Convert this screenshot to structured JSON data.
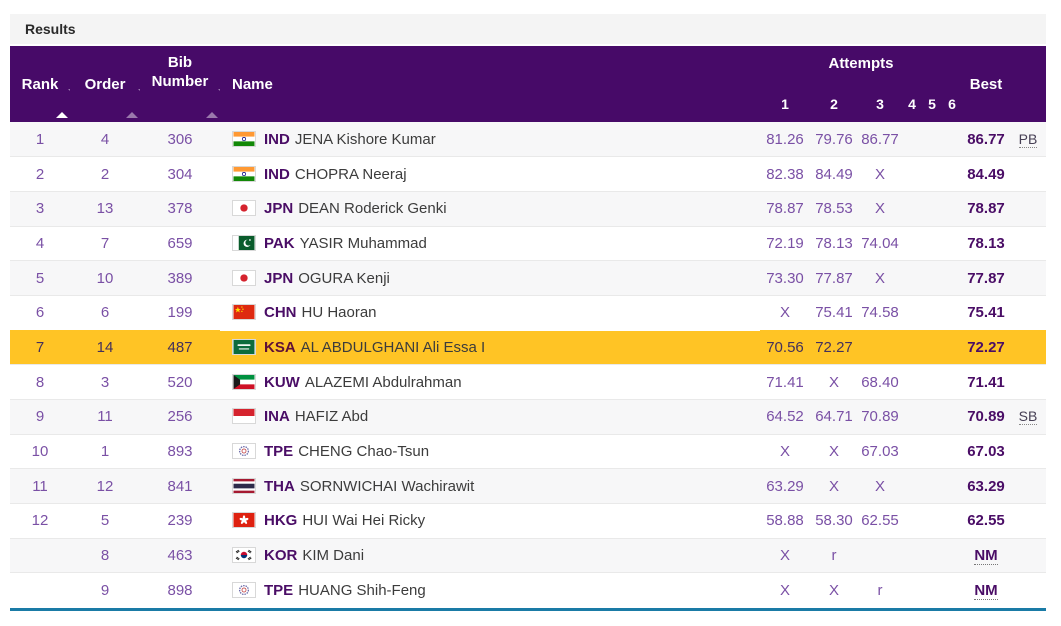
{
  "panel": {
    "title": "Results"
  },
  "table": {
    "columns": {
      "rank": "Rank",
      "order": "Order",
      "bib_line1": "Bib",
      "bib_line2": "Number",
      "name": "Name",
      "attempts": "Attempts",
      "attempt_numbers": [
        "1",
        "2",
        "3",
        "4",
        "5",
        "6"
      ],
      "best": "Best"
    },
    "sort": {
      "active_column": "rank",
      "direction": "asc"
    },
    "rows": [
      {
        "rank": "1",
        "order": "4",
        "bib": "306",
        "country": "IND",
        "athlete": "JENA Kishore Kumar",
        "attempts": [
          "81.26",
          "79.76",
          "86.77",
          "",
          "",
          ""
        ],
        "best": "86.77",
        "note": "PB",
        "highlight": false
      },
      {
        "rank": "2",
        "order": "2",
        "bib": "304",
        "country": "IND",
        "athlete": "CHOPRA Neeraj",
        "attempts": [
          "82.38",
          "84.49",
          "X",
          "",
          "",
          ""
        ],
        "best": "84.49",
        "note": "",
        "highlight": false
      },
      {
        "rank": "3",
        "order": "13",
        "bib": "378",
        "country": "JPN",
        "athlete": "DEAN Roderick Genki",
        "attempts": [
          "78.87",
          "78.53",
          "X",
          "",
          "",
          ""
        ],
        "best": "78.87",
        "note": "",
        "highlight": false
      },
      {
        "rank": "4",
        "order": "7",
        "bib": "659",
        "country": "PAK",
        "athlete": "YASIR Muhammad",
        "attempts": [
          "72.19",
          "78.13",
          "74.04",
          "",
          "",
          ""
        ],
        "best": "78.13",
        "note": "",
        "highlight": false
      },
      {
        "rank": "5",
        "order": "10",
        "bib": "389",
        "country": "JPN",
        "athlete": "OGURA Kenji",
        "attempts": [
          "73.30",
          "77.87",
          "X",
          "",
          "",
          ""
        ],
        "best": "77.87",
        "note": "",
        "highlight": false
      },
      {
        "rank": "6",
        "order": "6",
        "bib": "199",
        "country": "CHN",
        "athlete": "HU Haoran",
        "attempts": [
          "X",
          "75.41",
          "74.58",
          "",
          "",
          ""
        ],
        "best": "75.41",
        "note": "",
        "highlight": false
      },
      {
        "rank": "7",
        "order": "14",
        "bib": "487",
        "country": "KSA",
        "athlete": "AL ABDULGHANI Ali Essa I",
        "attempts": [
          "70.56",
          "72.27",
          "",
          "",
          "",
          ""
        ],
        "best": "72.27",
        "note": "",
        "highlight": true
      },
      {
        "rank": "8",
        "order": "3",
        "bib": "520",
        "country": "KUW",
        "athlete": "ALAZEMI Abdulrahman",
        "attempts": [
          "71.41",
          "X",
          "68.40",
          "",
          "",
          ""
        ],
        "best": "71.41",
        "note": "",
        "highlight": false
      },
      {
        "rank": "9",
        "order": "11",
        "bib": "256",
        "country": "INA",
        "athlete": "HAFIZ Abd",
        "attempts": [
          "64.52",
          "64.71",
          "70.89",
          "",
          "",
          ""
        ],
        "best": "70.89",
        "note": "SB",
        "highlight": false
      },
      {
        "rank": "10",
        "order": "1",
        "bib": "893",
        "country": "TPE",
        "athlete": "CHENG Chao-Tsun",
        "attempts": [
          "X",
          "X",
          "67.03",
          "",
          "",
          ""
        ],
        "best": "67.03",
        "note": "",
        "highlight": false
      },
      {
        "rank": "11",
        "order": "12",
        "bib": "841",
        "country": "THA",
        "athlete": "SORNWICHAI Wachirawit",
        "attempts": [
          "63.29",
          "X",
          "X",
          "",
          "",
          ""
        ],
        "best": "63.29",
        "note": "",
        "highlight": false
      },
      {
        "rank": "12",
        "order": "5",
        "bib": "239",
        "country": "HKG",
        "athlete": "HUI Wai Hei Ricky",
        "attempts": [
          "58.88",
          "58.30",
          "62.55",
          "",
          "",
          ""
        ],
        "best": "62.55",
        "note": "",
        "highlight": false
      },
      {
        "rank": "",
        "order": "8",
        "bib": "463",
        "country": "KOR",
        "athlete": "KIM Dani",
        "attempts": [
          "X",
          "r",
          "",
          "",
          "",
          ""
        ],
        "best": "NM",
        "note": "",
        "highlight": false
      },
      {
        "rank": "",
        "order": "9",
        "bib": "898",
        "country": "TPE",
        "athlete": "HUANG Shih-Feng",
        "attempts": [
          "X",
          "X",
          "r",
          "",
          "",
          ""
        ],
        "best": "NM",
        "note": "",
        "highlight": false
      }
    ]
  },
  "colors": {
    "header_bg": "#470a68",
    "highlight_row": "#ffc425",
    "value_text": "#7a50a5",
    "strong_text": "#4a0d66",
    "bottom_border": "#1a7ba6",
    "panel_bg": "#f4f4f4",
    "stripe": "#f7f7f8",
    "row_border": "#e9e9e9"
  }
}
